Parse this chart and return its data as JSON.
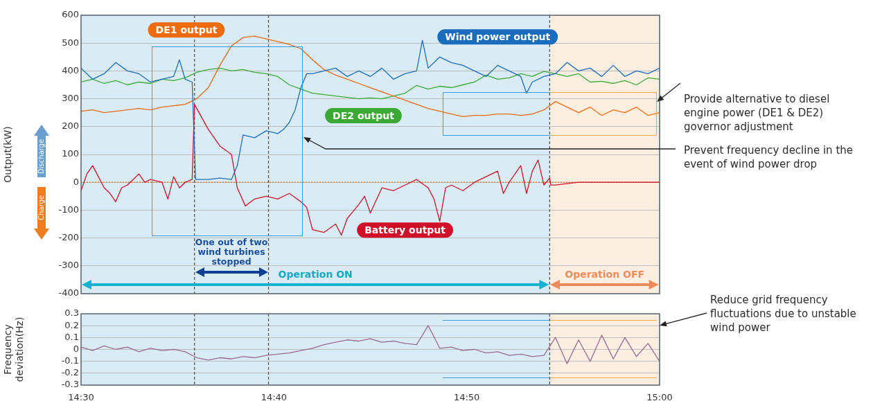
{
  "chart_data": [
    {
      "type": "line",
      "ylabel": "Output(kW)",
      "x": [
        14.5,
        14.51,
        14.52,
        14.53,
        14.54,
        14.55,
        14.56,
        14.57,
        14.58,
        14.59,
        14.6,
        14.61,
        14.62,
        14.63,
        14.64,
        14.65,
        14.66,
        14.67,
        14.68,
        14.69,
        14.7,
        14.71,
        14.72,
        14.73,
        14.74,
        14.75,
        14.76,
        14.77,
        14.78,
        14.79,
        14.8,
        14.81,
        14.82,
        14.83,
        14.84,
        14.85,
        14.86,
        14.87,
        14.88,
        14.89,
        14.9,
        14.91,
        14.92,
        14.93,
        14.94,
        14.95,
        14.96,
        14.97,
        14.98,
        14.99,
        15.0
      ],
      "series": [
        {
          "name": "Wind power output",
          "color": "#1a6dbd",
          "x": [
            14.5,
            14.51,
            14.52,
            14.53,
            14.54,
            14.55,
            14.56,
            14.57,
            14.58,
            14.585,
            14.59,
            14.596,
            14.599,
            14.61,
            14.62,
            14.63,
            14.635,
            14.64,
            14.65,
            14.66,
            14.67,
            14.675,
            14.68,
            14.685,
            14.69,
            14.695,
            14.7,
            14.71,
            14.72,
            14.73,
            14.74,
            14.75,
            14.76,
            14.77,
            14.78,
            14.79,
            14.795,
            14.8,
            14.81,
            14.82,
            14.83,
            14.84,
            14.85,
            14.86,
            14.87,
            14.88,
            14.885,
            14.89,
            14.9,
            14.91,
            14.92,
            14.93,
            14.94,
            14.95,
            14.96,
            14.97,
            14.98,
            14.99,
            15.0
          ],
          "values": [
            410,
            370,
            390,
            430,
            400,
            390,
            360,
            370,
            380,
            440,
            370,
            360,
            10,
            10,
            15,
            10,
            60,
            170,
            160,
            185,
            175,
            190,
            215,
            260,
            340,
            390,
            390,
            400,
            410,
            380,
            400,
            380,
            410,
            370,
            390,
            400,
            510,
            410,
            450,
            430,
            420,
            400,
            380,
            420,
            400,
            380,
            320,
            360,
            380,
            390,
            430,
            400,
            410,
            380,
            420,
            380,
            400,
            390,
            410
          ]
        },
        {
          "name": "DE1 output",
          "color": "#ec6c0f",
          "values": [
            255,
            260,
            250,
            255,
            260,
            265,
            260,
            270,
            275,
            280,
            300,
            340,
            420,
            490,
            520,
            525,
            515,
            505,
            495,
            480,
            440,
            405,
            385,
            370,
            355,
            340,
            325,
            310,
            295,
            280,
            265,
            255,
            245,
            236,
            240,
            240,
            245,
            245,
            240,
            245,
            260,
            290,
            270,
            250,
            270,
            240,
            260,
            250,
            270,
            240,
            250
          ]
        },
        {
          "name": "DE2 output",
          "color": "#3aaa35",
          "values": [
            360,
            370,
            355,
            365,
            350,
            360,
            355,
            370,
            365,
            375,
            395,
            405,
            410,
            400,
            405,
            395,
            390,
            380,
            350,
            335,
            320,
            315,
            310,
            305,
            300,
            303,
            300,
            310,
            320,
            348,
            335,
            345,
            340,
            350,
            360,
            385,
            370,
            375,
            390,
            380,
            398,
            390,
            380,
            390,
            360,
            363,
            355,
            365,
            350,
            375,
            370
          ]
        },
        {
          "name": "Battery output",
          "color": "#d0102a",
          "x": [
            14.5,
            14.505,
            14.51,
            14.515,
            14.52,
            14.525,
            14.53,
            14.535,
            14.54,
            14.55,
            14.555,
            14.56,
            14.57,
            14.575,
            14.58,
            14.585,
            14.59,
            14.596,
            14.598,
            14.61,
            14.62,
            14.63,
            14.635,
            14.642,
            14.65,
            14.66,
            14.67,
            14.68,
            14.69,
            14.695,
            14.7,
            14.71,
            14.72,
            14.725,
            14.73,
            14.74,
            14.745,
            14.75,
            14.76,
            14.77,
            14.78,
            14.79,
            14.8,
            14.805,
            14.81,
            14.815,
            14.82,
            14.83,
            14.84,
            14.85,
            14.86,
            14.865,
            14.87,
            14.88,
            14.885,
            14.89,
            14.895,
            14.9,
            14.905,
            14.906,
            14.91,
            14.92,
            14.93,
            15.0
          ],
          "values": [
            -30,
            30,
            60,
            20,
            -20,
            -40,
            -70,
            -20,
            -10,
            30,
            0,
            10,
            0,
            -60,
            20,
            -20,
            0,
            10,
            280,
            190,
            130,
            100,
            -20,
            -85,
            -60,
            -50,
            -60,
            -40,
            -70,
            -90,
            -170,
            -180,
            -150,
            -190,
            -130,
            -80,
            -50,
            -110,
            -20,
            -30,
            -10,
            10,
            -20,
            -60,
            -140,
            -20,
            -10,
            -30,
            0,
            20,
            40,
            -40,
            0,
            60,
            -40,
            40,
            80,
            -10,
            15,
            -10,
            -10,
            -5,
            0,
            0
          ]
        }
      ],
      "xlim": [
        14.5,
        15.0
      ],
      "ylim": [
        -400,
        600
      ],
      "yticks": [
        -400,
        -300,
        -200,
        -100,
        0,
        100,
        200,
        300,
        400,
        500,
        600
      ],
      "tick_labels": "y",
      "grid": "y",
      "ref_lines": [
        {
          "axis": "x",
          "value": 14.598,
          "color": "#555555",
          "line_style": "dashed"
        },
        {
          "axis": "x",
          "value": 14.662,
          "color": "#555555",
          "line_style": "dashed"
        },
        {
          "axis": "x",
          "value": 14.905,
          "color": "#555555",
          "line_style": "dashed"
        },
        {
          "axis": "y",
          "value": 0,
          "color": "#ec6c0f",
          "line_style": "dotted"
        }
      ],
      "bands": [
        {
          "axis": "x",
          "from": 14.5,
          "to": 14.905,
          "label": "Operation ON",
          "color": "#d9ecf5"
        },
        {
          "axis": "x",
          "from": 14.905,
          "to": 15.0,
          "label": "Operation OFF",
          "color": "#fcefe2"
        }
      ],
      "annotations": [
        "One out of two wind turbines stopped",
        "Provide alternative to diesel engine power (DE1 & DE2) governor adjustment",
        "Prevent frequency decline in the event of wind power drop",
        "Discharge",
        "Charge"
      ]
    },
    {
      "type": "line",
      "ylabel": "Frequency deviation(Hz)",
      "x": [
        14.5,
        14.51,
        14.52,
        14.53,
        14.54,
        14.55,
        14.56,
        14.57,
        14.58,
        14.59,
        14.6,
        14.61,
        14.62,
        14.63,
        14.64,
        14.65,
        14.66,
        14.67,
        14.68,
        14.69,
        14.7,
        14.71,
        14.72,
        14.73,
        14.74,
        14.75,
        14.76,
        14.77,
        14.78,
        14.79,
        14.8,
        14.81,
        14.82,
        14.83,
        14.84,
        14.85,
        14.86,
        14.87,
        14.88,
        14.89,
        14.9,
        14.91,
        14.92,
        14.93,
        14.94,
        14.95,
        14.96,
        14.97,
        14.98,
        14.99,
        15.0
      ],
      "series": [
        {
          "color": "#9a6a93",
          "values": [
            0.02,
            -0.01,
            0.03,
            0.0,
            0.02,
            -0.02,
            0.01,
            -0.01,
            0.0,
            -0.02,
            -0.07,
            -0.09,
            -0.07,
            -0.08,
            -0.06,
            -0.07,
            -0.05,
            -0.04,
            -0.03,
            -0.01,
            0.01,
            0.04,
            0.06,
            0.08,
            0.07,
            0.09,
            0.06,
            0.07,
            0.05,
            0.04,
            0.2,
            0.01,
            0.02,
            -0.01,
            0.0,
            -0.03,
            -0.02,
            -0.05,
            -0.04,
            -0.06,
            -0.05,
            0.1,
            -0.12,
            0.08,
            -0.1,
            0.12,
            -0.08,
            0.1,
            -0.06,
            0.05,
            -0.1
          ]
        }
      ],
      "xlim": [
        14.5,
        15.0
      ],
      "xticks": [
        {
          "value": 14.5,
          "label": "14:30"
        },
        {
          "value": 14.6667,
          "label": "14:40"
        },
        {
          "value": 14.8333,
          "label": "14:50"
        },
        {
          "value": 15.0,
          "label": "15:00"
        }
      ],
      "ylim": [
        -0.3,
        0.3
      ],
      "yticks": [
        -0.3,
        -0.2,
        -0.1,
        0,
        0.1,
        0.2,
        0.3
      ],
      "grid": "y",
      "ref_lines": [
        {
          "axis": "x",
          "value": 14.598,
          "color": "#555555",
          "line_style": "dashed"
        },
        {
          "axis": "x",
          "value": 14.662,
          "color": "#555555",
          "line_style": "dashed"
        },
        {
          "axis": "x",
          "value": 14.905,
          "color": "#555555",
          "line_style": "dashed"
        }
      ],
      "bands": [
        {
          "axis": "x",
          "from": 14.5,
          "to": 14.905,
          "color": "#d9ecf5"
        },
        {
          "axis": "x",
          "from": 14.905,
          "to": 15.0,
          "color": "#fcefe2"
        }
      ],
      "annotations": [
        "Reduce grid frequency fluctuations due to unstable wind power"
      ]
    }
  ]
}
